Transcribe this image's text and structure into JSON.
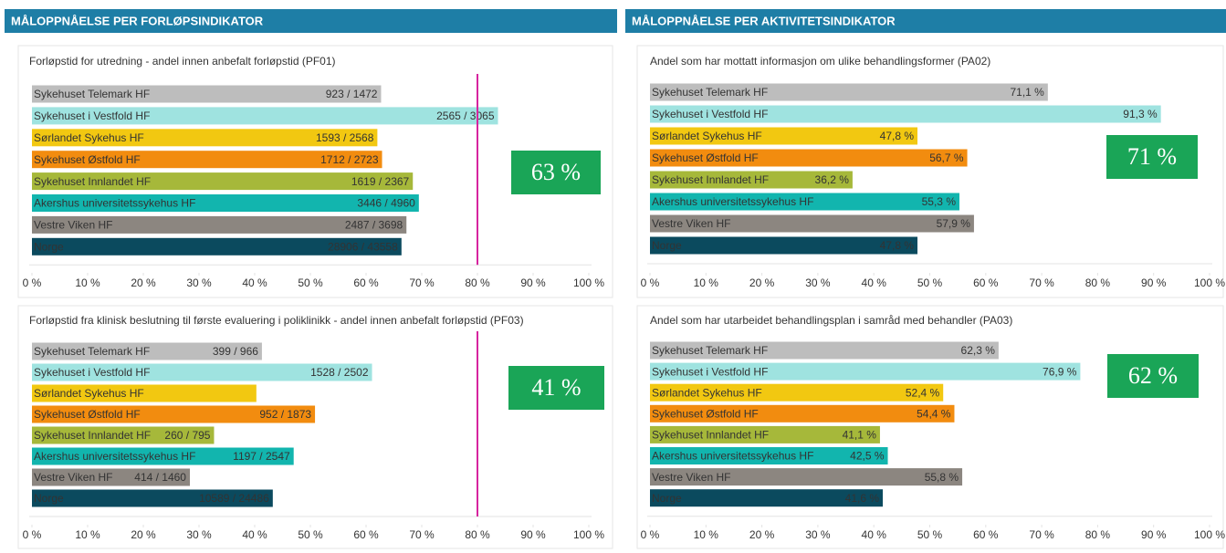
{
  "sections": [
    {
      "title": "MÅLOPPNÅELSE PER FORLØPSINDIKATOR"
    },
    {
      "title": "MÅLOPPNÅELSE PER AKTIVITETSINDIKATOR"
    }
  ],
  "chart_data": [
    {
      "type": "barh",
      "title": "Forløpstid for utredning - andel innen anbefalt forløpstid (PF01)",
      "categories": [
        "Sykehuset Telemark HF",
        "Sykehuset i Vestfold HF",
        "Sørlandet Sykehus HF",
        "Sykehuset Østfold HF",
        "Sykehuset Innlandet HF",
        "Akershus universitetssykehus HF",
        "Vestre Viken HF",
        "Norge"
      ],
      "values": [
        62.7,
        83.69,
        62.03,
        62.87,
        68.4,
        69.48,
        67.25,
        66.36
      ],
      "value_labels": [
        "923 / 1472",
        "2565 / 3065",
        "1593 / 2568",
        "1712 / 2723",
        "1619 / 2367",
        "3446 / 4960",
        "2487 / 3698",
        "28906 / 43558"
      ],
      "colors": [
        "#bdbdbd",
        "#9fe3e0",
        "#f2c811",
        "#f28c0f",
        "#a6b83a",
        "#12b5ae",
        "#8c8680",
        "#0b4a5e"
      ],
      "xlim": [
        0,
        100
      ],
      "xticks": [
        {
          "value": 0,
          "label": "0 %"
        },
        {
          "value": 10,
          "label": "10 %"
        },
        {
          "value": 20,
          "label": "20 %"
        },
        {
          "value": 30,
          "label": "30 %"
        },
        {
          "value": 40,
          "label": "40 %"
        },
        {
          "value": 50,
          "label": "50 %"
        },
        {
          "value": 60,
          "label": "60 %"
        },
        {
          "value": 70,
          "label": "70 %"
        },
        {
          "value": 80,
          "label": "80 %"
        },
        {
          "value": 90,
          "label": "90 %"
        },
        {
          "value": 100,
          "label": "100 %"
        }
      ],
      "target": 80,
      "target_color": "#d6249f",
      "kpi_label": "63 %"
    },
    {
      "type": "barh",
      "title": "Forløpstid fra klinisk beslutning til første evaluering i poliklinikk - andel innen anbefalt forløpstid (PF03)",
      "categories": [
        "Sykehuset Telemark HF",
        "Sykehuset i Vestfold HF",
        "Sørlandet Sykehus HF",
        "Sykehuset Østfold HF",
        "Sykehuset Innlandet HF",
        "Akershus universitetssykehus HF",
        "Vestre Viken HF",
        "Norge"
      ],
      "values": [
        41.3,
        61.07,
        40.3,
        50.83,
        32.7,
        47.0,
        28.36,
        43.25
      ],
      "value_labels": [
        "399 / 966",
        "1528 / 2502",
        null,
        "952 / 1873",
        "260 / 795",
        "1197 / 2547",
        "414 / 1460",
        "10589 / 24486"
      ],
      "colors": [
        "#bdbdbd",
        "#9fe3e0",
        "#f2c811",
        "#f28c0f",
        "#a6b83a",
        "#12b5ae",
        "#8c8680",
        "#0b4a5e"
      ],
      "xlim": [
        0,
        100
      ],
      "xticks": [
        {
          "value": 0,
          "label": "0 %"
        },
        {
          "value": 10,
          "label": "10 %"
        },
        {
          "value": 20,
          "label": "20 %"
        },
        {
          "value": 30,
          "label": "30 %"
        },
        {
          "value": 40,
          "label": "40 %"
        },
        {
          "value": 50,
          "label": "50 %"
        },
        {
          "value": 60,
          "label": "60 %"
        },
        {
          "value": 70,
          "label": "70 %"
        },
        {
          "value": 80,
          "label": "80 %"
        },
        {
          "value": 90,
          "label": "90 %"
        },
        {
          "value": 100,
          "label": "100 %"
        }
      ],
      "target": 80,
      "target_color": "#d6249f",
      "kpi_label": "41 %"
    },
    {
      "type": "barh",
      "title": "Andel som har mottatt informasjon om ulike behandlingsformer (PA02)",
      "categories": [
        "Sykehuset Telemark HF",
        "Sykehuset i Vestfold HF",
        "Sørlandet Sykehus HF",
        "Sykehuset Østfold HF",
        "Sykehuset Innlandet HF",
        "Akershus universitetssykehus HF",
        "Vestre Viken HF",
        "Norge"
      ],
      "values": [
        71.1,
        91.3,
        47.8,
        56.7,
        36.2,
        55.3,
        57.9,
        47.8
      ],
      "value_labels": [
        "71,1 %",
        "91,3 %",
        "47,8 %",
        "56,7 %",
        "36,2 %",
        "55,3 %",
        "57,9 %",
        "47,8 %"
      ],
      "colors": [
        "#bdbdbd",
        "#9fe3e0",
        "#f2c811",
        "#f28c0f",
        "#a6b83a",
        "#12b5ae",
        "#8c8680",
        "#0b4a5e"
      ],
      "xlim": [
        0,
        100
      ],
      "xticks": [
        {
          "value": 0,
          "label": "0 %"
        },
        {
          "value": 10,
          "label": "10 %"
        },
        {
          "value": 20,
          "label": "20 %"
        },
        {
          "value": 30,
          "label": "30 %"
        },
        {
          "value": 40,
          "label": "40 %"
        },
        {
          "value": 50,
          "label": "50 %"
        },
        {
          "value": 60,
          "label": "60 %"
        },
        {
          "value": 70,
          "label": "70 %"
        },
        {
          "value": 80,
          "label": "80 %"
        },
        {
          "value": 90,
          "label": "90 %"
        },
        {
          "value": 100,
          "label": "100 %"
        }
      ],
      "kpi_label": "71 %"
    },
    {
      "type": "barh",
      "title": "Andel som har utarbeidet behandlingsplan i samråd med behandler (PA03)",
      "categories": [
        "Sykehuset Telemark HF",
        "Sykehuset i Vestfold HF",
        "Sørlandet Sykehus HF",
        "Sykehuset Østfold HF",
        "Sykehuset Innlandet HF",
        "Akershus universitetssykehus HF",
        "Vestre Viken HF",
        "Norge"
      ],
      "values": [
        62.3,
        76.9,
        52.4,
        54.4,
        41.1,
        42.5,
        55.8,
        41.6
      ],
      "value_labels": [
        "62,3 %",
        "76,9 %",
        "52,4 %",
        "54,4 %",
        "41,1 %",
        "42,5 %",
        "55,8 %",
        "41,6 %"
      ],
      "colors": [
        "#bdbdbd",
        "#9fe3e0",
        "#f2c811",
        "#f28c0f",
        "#a6b83a",
        "#12b5ae",
        "#8c8680",
        "#0b4a5e"
      ],
      "xlim": [
        0,
        100
      ],
      "xticks": [
        {
          "value": 0,
          "label": "0 %"
        },
        {
          "value": 10,
          "label": "10 %"
        },
        {
          "value": 20,
          "label": "20 %"
        },
        {
          "value": 30,
          "label": "30 %"
        },
        {
          "value": 40,
          "label": "40 %"
        },
        {
          "value": 50,
          "label": "50 %"
        },
        {
          "value": 60,
          "label": "60 %"
        },
        {
          "value": 70,
          "label": "70 %"
        },
        {
          "value": 80,
          "label": "80 %"
        },
        {
          "value": 90,
          "label": "90 %"
        },
        {
          "value": 100,
          "label": "100 %"
        }
      ],
      "kpi_label": "62 %"
    }
  ]
}
